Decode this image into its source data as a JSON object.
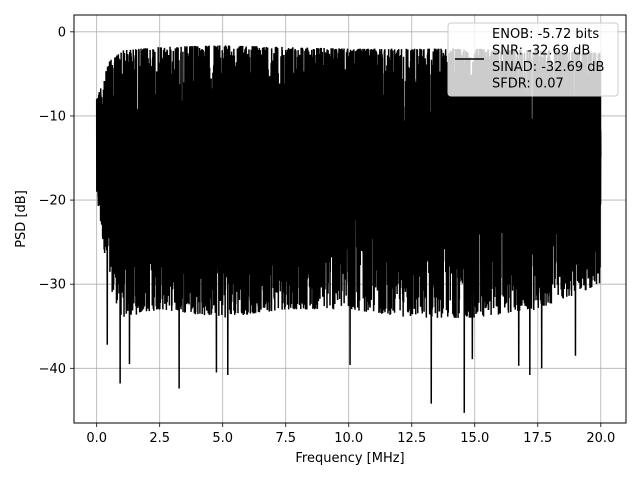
{
  "chart_data": {
    "type": "line",
    "title": "",
    "xlabel": "Frequency [MHz]",
    "ylabel": "PSD [dB]",
    "xlim": [
      -0.9,
      21.0
    ],
    "ylim": [
      -46.5,
      2.0
    ],
    "x_ticks": [
      0.0,
      2.5,
      5.0,
      7.5,
      10.0,
      12.5,
      15.0,
      17.5,
      20.0
    ],
    "x_tick_labels": [
      "0.0",
      "2.5",
      "5.0",
      "7.5",
      "10.0",
      "12.5",
      "15.0",
      "17.5",
      "20.0"
    ],
    "y_ticks": [
      0,
      -10,
      -20,
      -30,
      -40
    ],
    "y_tick_labels": [
      "0",
      "−10",
      "−20",
      "−30",
      "−40"
    ],
    "grid": true,
    "legend_position": "top-right",
    "series": [
      {
        "name": "ENOB: -5.72 bits\nSNR: -32.69 dB\nSINAD: -32.69 dB\nSFDR: 0.07",
        "color": "#000000",
        "x_range": [
          0.0,
          20.0
        ],
        "points": 4000,
        "upper_envelope": [
          [
            0.0,
            -8.0
          ],
          [
            0.5,
            -3.5
          ],
          [
            1.0,
            -2.2
          ],
          [
            2.5,
            -1.8
          ],
          [
            5.0,
            -1.6
          ],
          [
            7.5,
            -1.8
          ],
          [
            10.0,
            -2.0
          ],
          [
            12.5,
            -2.0
          ],
          [
            15.0,
            -2.0
          ],
          [
            17.5,
            -2.1
          ],
          [
            20.0,
            -2.5
          ]
        ],
        "lower_envelope": [
          [
            0.0,
            -20.0
          ],
          [
            0.5,
            -30.0
          ],
          [
            1.0,
            -34.0
          ],
          [
            2.5,
            -33.0
          ],
          [
            5.0,
            -34.0
          ],
          [
            7.5,
            -33.0
          ],
          [
            10.0,
            -33.0
          ],
          [
            12.5,
            -34.0
          ],
          [
            15.0,
            -34.0
          ],
          [
            17.5,
            -33.0
          ],
          [
            20.0,
            -30.0
          ]
        ],
        "minima": [
          [
            0.42,
            -37.2
          ],
          [
            0.93,
            -41.8
          ],
          [
            1.3,
            -39.5
          ],
          [
            3.27,
            -42.4
          ],
          [
            4.75,
            -40.5
          ],
          [
            5.2,
            -40.8
          ],
          [
            10.05,
            -39.6
          ],
          [
            13.27,
            -44.2
          ],
          [
            14.58,
            -45.3
          ],
          [
            14.9,
            -38.9
          ],
          [
            16.74,
            -39.7
          ],
          [
            17.18,
            -40.8
          ],
          [
            17.65,
            -40.0
          ],
          [
            18.99,
            -38.5
          ]
        ]
      }
    ]
  }
}
